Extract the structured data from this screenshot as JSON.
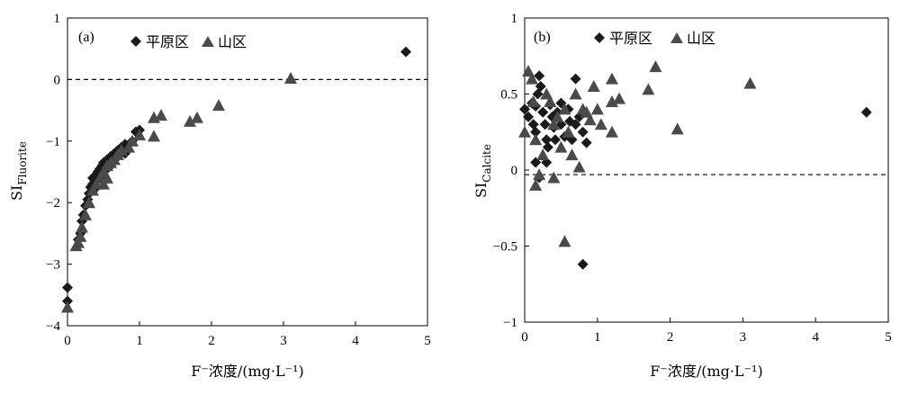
{
  "chart_data": [
    {
      "type": "scatter",
      "panel_label": "(a)",
      "xlabel": "F⁻浓度/(mg·L⁻¹)",
      "ylabel": "SI",
      "ylabel_sub": "Fluorite",
      "xlim": [
        0,
        5
      ],
      "ylim": [
        -4,
        1
      ],
      "xticks": [
        "0",
        "1",
        "2",
        "3",
        "4",
        "5"
      ],
      "yticks": [
        "1",
        "0",
        "−1",
        "−2",
        "−3",
        "−4"
      ],
      "reference_line_y": 0,
      "legend_position": "top",
      "series": [
        {
          "name": "平原区",
          "marker": "diamond",
          "color": "#1a1a1a",
          "points": [
            [
              0.0,
              -3.38
            ],
            [
              0.0,
              -3.6
            ],
            [
              0.15,
              -2.6
            ],
            [
              0.18,
              -2.5
            ],
            [
              0.2,
              -2.3
            ],
            [
              0.22,
              -2.2
            ],
            [
              0.25,
              -2.05
            ],
            [
              0.28,
              -1.95
            ],
            [
              0.3,
              -1.85
            ],
            [
              0.32,
              -1.75
            ],
            [
              0.35,
              -1.7
            ],
            [
              0.38,
              -1.65
            ],
            [
              0.4,
              -1.55
            ],
            [
              0.42,
              -1.5
            ],
            [
              0.45,
              -1.45
            ],
            [
              0.48,
              -1.4
            ],
            [
              0.5,
              -1.35
            ],
            [
              0.55,
              -1.3
            ],
            [
              0.6,
              -1.25
            ],
            [
              0.65,
              -1.2
            ],
            [
              0.7,
              -1.15
            ],
            [
              0.75,
              -1.1
            ],
            [
              0.8,
              -1.05
            ],
            [
              0.9,
              -1.0
            ],
            [
              0.95,
              -0.85
            ],
            [
              1.0,
              -0.82
            ],
            [
              0.35,
              -1.6
            ],
            [
              0.45,
              -1.55
            ],
            [
              0.55,
              -1.45
            ],
            [
              0.6,
              -1.4
            ],
            [
              0.7,
              -1.25
            ],
            [
              0.8,
              -1.2
            ],
            [
              0.4,
              -1.75
            ],
            [
              0.5,
              -1.55
            ],
            [
              4.7,
              0.45
            ]
          ]
        },
        {
          "name": "山区",
          "marker": "triangle",
          "color": "#4a4a4a",
          "points": [
            [
              0.0,
              -3.7
            ],
            [
              0.12,
              -2.7
            ],
            [
              0.15,
              -2.65
            ],
            [
              0.18,
              -2.55
            ],
            [
              0.2,
              -2.4
            ],
            [
              0.25,
              -2.2
            ],
            [
              0.3,
              -2.0
            ],
            [
              0.35,
              -1.8
            ],
            [
              0.4,
              -1.7
            ],
            [
              0.45,
              -1.6
            ],
            [
              0.5,
              -1.5
            ],
            [
              0.55,
              -1.4
            ],
            [
              0.6,
              -1.35
            ],
            [
              0.65,
              -1.3
            ],
            [
              0.7,
              -1.22
            ],
            [
              0.75,
              -1.15
            ],
            [
              0.85,
              -1.1
            ],
            [
              0.9,
              -1.0
            ],
            [
              1.0,
              -0.9
            ],
            [
              1.2,
              -0.92
            ],
            [
              1.2,
              -0.62
            ],
            [
              1.3,
              -0.58
            ],
            [
              1.7,
              -0.68
            ],
            [
              1.8,
              -0.62
            ],
            [
              2.1,
              -0.42
            ],
            [
              3.1,
              0.02
            ],
            [
              0.55,
              -1.6
            ],
            [
              0.5,
              -1.7
            ]
          ]
        }
      ]
    },
    {
      "type": "scatter",
      "panel_label": "(b)",
      "xlabel": "F⁻浓度/(mg·L⁻¹)",
      "ylabel": "SI",
      "ylabel_sub": "Calcite",
      "xlim": [
        0,
        5
      ],
      "ylim": [
        -1,
        1
      ],
      "xticks": [
        "0",
        "1",
        "2",
        "3",
        "4",
        "5"
      ],
      "yticks": [
        "1",
        "0.5",
        "0",
        "−0.5",
        "−1"
      ],
      "reference_line_y": -0.03,
      "legend_position": "top",
      "series": [
        {
          "name": "平原区",
          "marker": "diamond",
          "color": "#1a1a1a",
          "points": [
            [
              0.0,
              0.4
            ],
            [
              0.05,
              0.35
            ],
            [
              0.1,
              0.44
            ],
            [
              0.12,
              0.3
            ],
            [
              0.15,
              0.25
            ],
            [
              0.15,
              0.42
            ],
            [
              0.18,
              0.5
            ],
            [
              0.2,
              0.62
            ],
            [
              0.22,
              0.55
            ],
            [
              0.25,
              0.38
            ],
            [
              0.28,
              0.3
            ],
            [
              0.3,
              0.2
            ],
            [
              0.32,
              0.15
            ],
            [
              0.35,
              0.43
            ],
            [
              0.38,
              0.35
            ],
            [
              0.4,
              0.28
            ],
            [
              0.42,
              0.2
            ],
            [
              0.45,
              0.38
            ],
            [
              0.5,
              0.44
            ],
            [
              0.5,
              0.3
            ],
            [
              0.55,
              0.22
            ],
            [
              0.6,
              0.4
            ],
            [
              0.62,
              0.32
            ],
            [
              0.65,
              0.2
            ],
            [
              0.7,
              0.6
            ],
            [
              0.7,
              0.3
            ],
            [
              0.75,
              0.35
            ],
            [
              0.8,
              0.25
            ],
            [
              0.85,
              0.18
            ],
            [
              0.2,
              -0.05
            ],
            [
              0.3,
              0.05
            ],
            [
              0.15,
              0.05
            ],
            [
              0.8,
              -0.62
            ],
            [
              4.7,
              0.38
            ]
          ]
        },
        {
          "name": "山区",
          "marker": "triangle",
          "color": "#4a4a4a",
          "points": [
            [
              0.0,
              0.25
            ],
            [
              0.05,
              0.65
            ],
            [
              0.1,
              0.6
            ],
            [
              0.12,
              0.45
            ],
            [
              0.15,
              0.2
            ],
            [
              0.15,
              -0.1
            ],
            [
              0.2,
              -0.03
            ],
            [
              0.25,
              0.1
            ],
            [
              0.3,
              0.5
            ],
            [
              0.35,
              0.45
            ],
            [
              0.4,
              0.3
            ],
            [
              0.45,
              0.35
            ],
            [
              0.5,
              0.15
            ],
            [
              0.55,
              0.4
            ],
            [
              0.55,
              -0.47
            ],
            [
              0.6,
              0.25
            ],
            [
              0.65,
              0.1
            ],
            [
              0.7,
              0.5
            ],
            [
              0.75,
              0.02
            ],
            [
              0.8,
              0.4
            ],
            [
              0.85,
              0.38
            ],
            [
              0.9,
              0.33
            ],
            [
              0.95,
              0.55
            ],
            [
              1.0,
              0.4
            ],
            [
              1.05,
              0.3
            ],
            [
              1.2,
              0.6
            ],
            [
              1.2,
              0.25
            ],
            [
              1.2,
              0.45
            ],
            [
              1.3,
              0.47
            ],
            [
              1.7,
              0.53
            ],
            [
              1.8,
              0.68
            ],
            [
              2.1,
              0.27
            ],
            [
              3.1,
              0.57
            ],
            [
              0.4,
              -0.05
            ]
          ]
        }
      ]
    }
  ]
}
